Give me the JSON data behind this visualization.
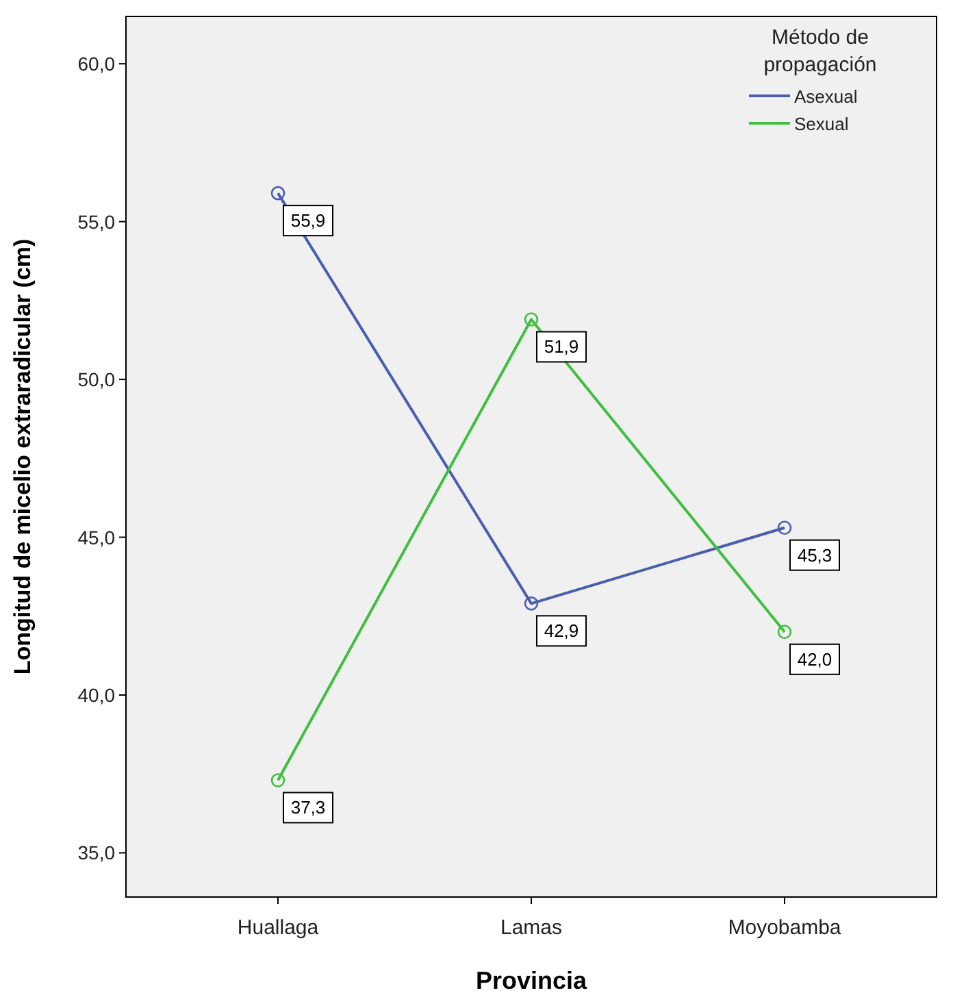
{
  "chart_data": {
    "type": "line",
    "xlabel": "Provincia",
    "ylabel": "Longitud de micelio extraradicular (cm)",
    "legend_title": "Método de propagación",
    "categories": [
      "Huallaga",
      "Lamas",
      "Moyobamba"
    ],
    "series": [
      {
        "name": "Asexual",
        "color": "#4a5eb0",
        "values": [
          55.9,
          42.9,
          45.3
        ],
        "value_labels": [
          "55,9",
          "42,9",
          "45,3"
        ]
      },
      {
        "name": "Sexual",
        "color": "#3fbf3f",
        "values": [
          37.3,
          51.9,
          42.0
        ],
        "value_labels": [
          "37,3",
          "51,9",
          "42,0"
        ]
      }
    ],
    "ylim": [
      33.6,
      61.5
    ],
    "yticks": [
      {
        "value": 35,
        "label": "35,0"
      },
      {
        "value": 40,
        "label": "40,0"
      },
      {
        "value": 45,
        "label": "45,0"
      },
      {
        "value": 50,
        "label": "50,0"
      },
      {
        "value": 55,
        "label": "55,0"
      },
      {
        "value": 60,
        "label": "60,0"
      }
    ],
    "grid": false,
    "legend": "top right",
    "marker": "circle",
    "line_style": "solid"
  }
}
